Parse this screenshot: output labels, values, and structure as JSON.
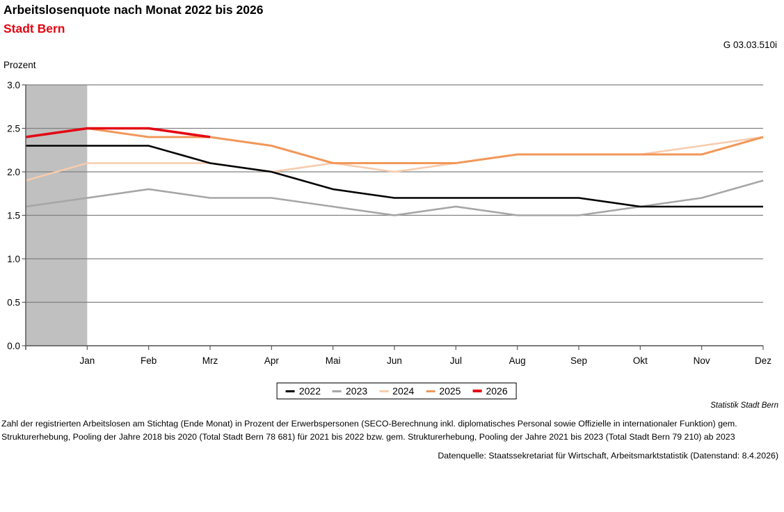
{
  "header": {
    "title": "Arbeitslosenquote nach Monat 2022 bis 2026",
    "subtitle": "Stadt Bern",
    "subtitle_color": "#e30613",
    "figure_id": "G 03.03.510i"
  },
  "chart_data": {
    "type": "line",
    "title": "Arbeitslosenquote nach Monat 2022 bis 2026",
    "subtitle": "Stadt Bern",
    "ylabel": "Prozent",
    "xlabel": "",
    "ylim": [
      0.0,
      3.0
    ],
    "ytick_labels": [
      "3.0",
      "2.5",
      "2.0",
      "1.5",
      "1.0",
      "0.5",
      "0.0"
    ],
    "x_categories": [
      "",
      "Jan",
      "Feb",
      "Mrz",
      "Apr",
      "Mai",
      "Jun",
      "Jul",
      "Aug",
      "Sep",
      "Okt",
      "Nov",
      "Dez"
    ],
    "grid": true,
    "legend_position": "bottom",
    "axis_color": "#595959",
    "gridline_color": "#808080",
    "highlight_band": {
      "from_index": 0,
      "to_index": 1,
      "color": "#c0c0c0"
    },
    "draw_order": [
      "2024",
      "2023",
      "2022",
      "2025",
      "2026"
    ],
    "series": [
      {
        "name": "2022",
        "color": "#000000",
        "stroke_width": 2.6,
        "values": [
          2.3,
          2.3,
          2.3,
          2.1,
          2.0,
          1.8,
          1.7,
          1.7,
          1.7,
          1.7,
          1.6,
          1.6,
          1.6
        ]
      },
      {
        "name": "2023",
        "color": "#a6a6a6",
        "stroke_width": 2.6,
        "values": [
          1.6,
          1.7,
          1.8,
          1.7,
          1.7,
          1.6,
          1.5,
          1.6,
          1.5,
          1.5,
          1.6,
          1.7,
          1.9
        ]
      },
      {
        "name": "2024",
        "color": "#f8cbad",
        "stroke_width": 2.6,
        "values": [
          1.9,
          2.1,
          2.1,
          2.1,
          2.0,
          2.1,
          2.0,
          2.1,
          2.2,
          2.2,
          2.2,
          2.3,
          2.4
        ]
      },
      {
        "name": "2025",
        "color": "#f1975a",
        "stroke_width": 3.0,
        "values": [
          2.4,
          2.5,
          2.4,
          2.4,
          2.3,
          2.1,
          2.1,
          2.1,
          2.2,
          2.2,
          2.2,
          2.2,
          2.4
        ]
      },
      {
        "name": "2026",
        "color": "#e30613",
        "stroke_width": 3.6,
        "values": [
          2.4,
          2.5,
          2.5,
          2.4,
          null,
          null,
          null,
          null,
          null,
          null,
          null,
          null,
          null
        ]
      }
    ]
  },
  "footer": {
    "attribution": "Statistik Stadt Bern",
    "note_line1": "Zahl der registrierten Arbeitslosen am Stichtag (Ende Monat) in Prozent der Erwerbspersonen (SECO-Berechnung inkl. diplomatisches Personal sowie Offizielle in internationaler Funktion) gem.",
    "note_line2": "Strukturerhebung, Pooling der Jahre 2018 bis 2020 (Total Stadt Bern 78 681) für 2021 bis 2022 bzw. gem. Strukturerhebung, Pooling der Jahre 2021 bis 2023 (Total Stadt Bern 79 210) ab 2023",
    "datasource": "Datenquelle: Staatssekretariat für Wirtschaft, Arbeitsmarktstatistik (Datenstand: 8.4.2026)"
  }
}
